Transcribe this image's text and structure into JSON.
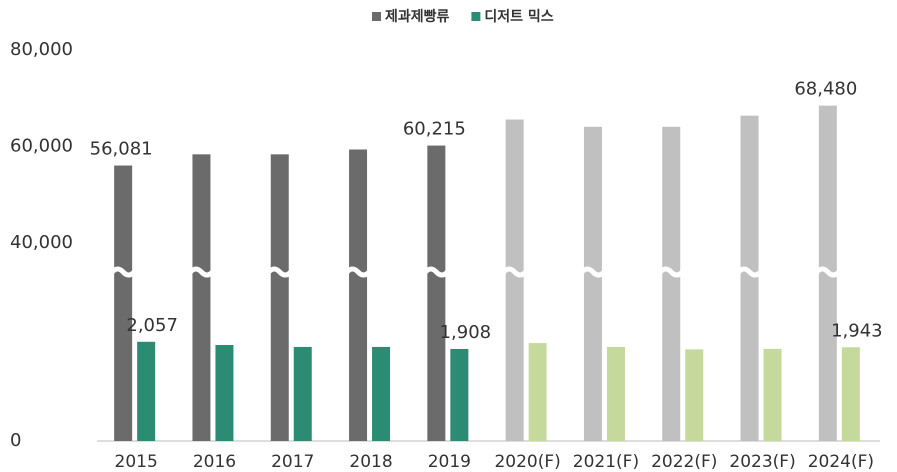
{
  "chart_data": {
    "type": "bar",
    "categories": [
      "2015",
      "2016",
      "2017",
      "2018",
      "2019",
      "2020(F)",
      "2021(F)",
      "2022(F)",
      "2023(F)",
      "2024(F)"
    ],
    "series": [
      {
        "name": "제과제빵류",
        "color": "#6b6b6b",
        "colors": [
          "#6b6b6b",
          "#6b6b6b",
          "#6b6b6b",
          "#6b6b6b",
          "#6b6b6b",
          "#c0c0c0",
          "#c0c0c0",
          "#c0c0c0",
          "#c0c0c0",
          "#c0c0c0"
        ],
        "values": [
          56081,
          58400,
          58400,
          59400,
          60215,
          65600,
          64100,
          64100,
          66400,
          68480
        ],
        "value_labels": [
          "56,081",
          null,
          null,
          null,
          "60,215",
          null,
          null,
          null,
          null,
          "68,480"
        ]
      },
      {
        "name": "디저트 믹스",
        "color": "#2b8c73",
        "colors": [
          "#2b8c73",
          "#2b8c73",
          "#2b8c73",
          "#2b8c73",
          "#2b8c73",
          "#c5d99c",
          "#c5d99c",
          "#c5d99c",
          "#c5d99c",
          "#c5d99c"
        ],
        "values": [
          2057,
          1990,
          1950,
          1950,
          1908,
          2030,
          1950,
          1900,
          1910,
          1943
        ],
        "value_labels": [
          "2,057",
          null,
          null,
          null,
          "1,908",
          null,
          null,
          null,
          null,
          "1,943"
        ]
      }
    ],
    "ylim": [
      0,
      80000
    ],
    "axis_break": [
      3400,
      33000
    ],
    "yticks": [
      0,
      {
        "value": 40000,
        "label": "40,000"
      },
      {
        "value": 60000,
        "label": "60,000"
      },
      {
        "value": 80000,
        "label": "80,000"
      }
    ],
    "legend": "top"
  }
}
